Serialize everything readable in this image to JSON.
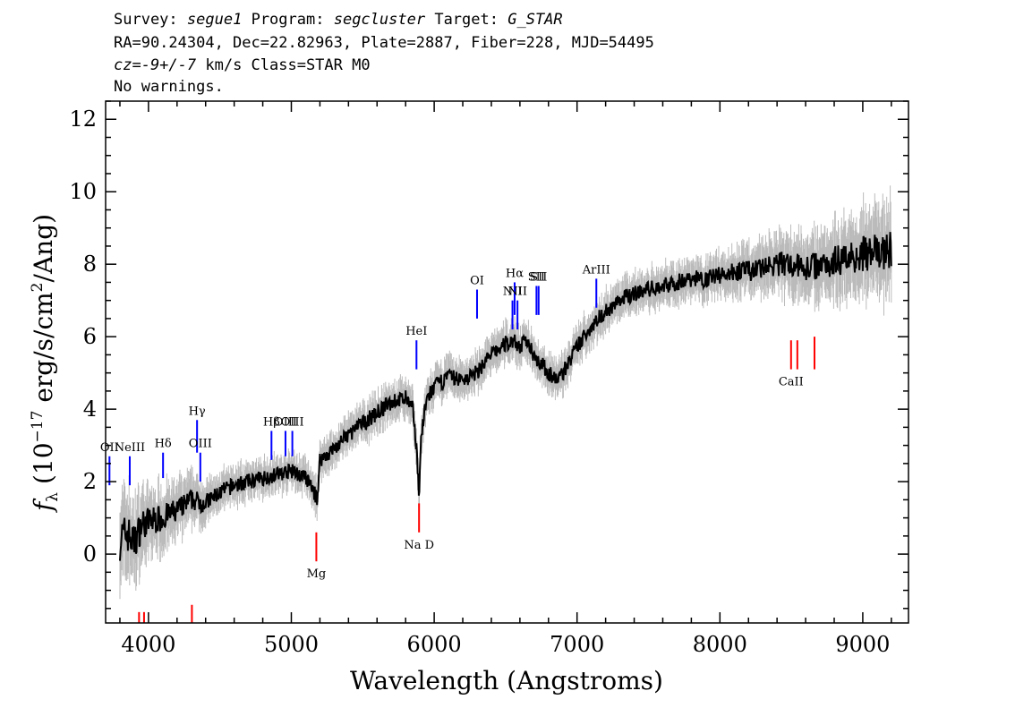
{
  "header": {
    "line1_survey_label": "Survey:",
    "line1_survey": "segue1",
    "line1_program_label": "Program:",
    "line1_program": "segcluster",
    "line1_target_label": "Target:",
    "line1_target": "G_STAR",
    "line2": "RA=90.24304, Dec=22.82963, Plate=2887, Fiber=228, MJD=54495",
    "line3_cz": "cz=-9+/-7",
    "line3_rest": " km/s Class=STAR M0",
    "line4": "No warnings."
  },
  "chart_data": {
    "type": "line",
    "xlabel": "Wavelength (Angstroms)",
    "ylabel": "f_λ (10^-17 erg/s/cm^2/Ang)",
    "xlim": [
      3700,
      9320
    ],
    "ylim": [
      -1.9,
      12.5
    ],
    "x_ticks": [
      4000,
      5000,
      6000,
      7000,
      8000,
      9000
    ],
    "y_ticks": [
      0,
      2,
      4,
      6,
      8,
      10,
      12
    ],
    "grid": false,
    "series": [
      {
        "role": "flux",
        "color": "#000000",
        "x": [
          3800,
          3850,
          3900,
          3950,
          4000,
          4100,
          4200,
          4300,
          4400,
          4500,
          4600,
          4700,
          4800,
          4900,
          5000,
          5100,
          5150,
          5180,
          5200,
          5300,
          5400,
          5500,
          5600,
          5700,
          5800,
          5850,
          5880,
          5893,
          5910,
          5950,
          6000,
          6100,
          6200,
          6300,
          6350,
          6400,
          6500,
          6563,
          6600,
          6650,
          6700,
          6800,
          6850,
          6900,
          7000,
          7100,
          7200,
          7300,
          7400,
          7500,
          7600,
          7700,
          7800,
          7900,
          8000,
          8100,
          8200,
          8300,
          8400,
          8500,
          8600,
          8700,
          8800,
          8900,
          9000,
          9100,
          9200
        ],
        "y": [
          0.4,
          0.6,
          0.3,
          0.8,
          0.9,
          1.0,
          1.2,
          1.5,
          1.4,
          1.7,
          1.9,
          2.0,
          2.1,
          2.2,
          2.3,
          2.1,
          1.8,
          1.5,
          2.6,
          2.9,
          3.3,
          3.6,
          3.9,
          4.2,
          4.3,
          4.0,
          2.8,
          1.6,
          3.3,
          4.3,
          4.6,
          4.9,
          4.8,
          5.0,
          5.3,
          5.5,
          5.8,
          5.9,
          5.7,
          5.9,
          5.5,
          5.0,
          4.8,
          5.0,
          5.7,
          6.3,
          6.7,
          7.0,
          7.2,
          7.3,
          7.4,
          7.5,
          7.6,
          7.6,
          7.7,
          7.8,
          7.8,
          7.9,
          8.0,
          8.0,
          7.9,
          8.0,
          8.1,
          8.2,
          8.3,
          8.3,
          8.4
        ]
      },
      {
        "role": "flux_error",
        "color": "#bbbbbb",
        "x": [
          3800,
          4000,
          4500,
          5000,
          5500,
          6000,
          6500,
          7000,
          7500,
          8000,
          8500,
          9000,
          9200
        ],
        "y_halfwidth": [
          1.3,
          0.9,
          0.5,
          0.45,
          0.5,
          0.5,
          0.5,
          0.5,
          0.5,
          0.55,
          0.8,
          1.1,
          1.2
        ]
      }
    ],
    "emission_lines": [
      {
        "label": "OII",
        "x": 3727,
        "y_bottom": 1.9,
        "y_top": 2.7
      },
      {
        "label": "NeIII",
        "x": 3869,
        "y_bottom": 1.9,
        "y_top": 2.7
      },
      {
        "label": "Hδ",
        "x": 4102,
        "y_bottom": 2.1,
        "y_top": 2.8
      },
      {
        "label": "Hγ",
        "x": 4340,
        "y_bottom": 2.8,
        "y_top": 3.7
      },
      {
        "label": "OIII",
        "x": 4363,
        "y_bottom": 2.0,
        "y_top": 2.8
      },
      {
        "label": "Hβ",
        "x": 4861,
        "y_bottom": 2.6,
        "y_top": 3.4
      },
      {
        "label": "OIII",
        "x": 4959,
        "y_bottom": 2.7,
        "y_top": 3.4
      },
      {
        "label": "OIII",
        "x": 5007,
        "y_bottom": 2.7,
        "y_top": 3.4
      },
      {
        "label": "HeI",
        "x": 5876,
        "y_bottom": 5.1,
        "y_top": 5.9
      },
      {
        "label": "OI",
        "x": 6300,
        "y_bottom": 6.5,
        "y_top": 7.3
      },
      {
        "label": "NII",
        "x": 6548,
        "y_bottom": 6.2,
        "y_top": 7.0
      },
      {
        "label": "Hα",
        "x": 6563,
        "y_bottom": 6.6,
        "y_top": 7.5
      },
      {
        "label": "NII",
        "x": 6583,
        "y_bottom": 6.2,
        "y_top": 7.0
      },
      {
        "label": "SII",
        "x": 6716,
        "y_bottom": 6.6,
        "y_top": 7.4
      },
      {
        "label": "SII",
        "x": 6731,
        "y_bottom": 6.6,
        "y_top": 7.4
      },
      {
        "label": "ArIII",
        "x": 7135,
        "y_bottom": 6.8,
        "y_top": 7.6
      }
    ],
    "absorption_lines": [
      {
        "label": "",
        "x": 3934,
        "y_top": -1.6,
        "y_bottom": -2.0
      },
      {
        "label": "",
        "x": 3969,
        "y_top": -1.6,
        "y_bottom": -2.0
      },
      {
        "label": "",
        "x": 4304,
        "y_top": -1.4,
        "y_bottom": -2.0
      },
      {
        "label": "Mg",
        "x": 5175,
        "y_top": 0.6,
        "y_bottom": -0.2
      },
      {
        "label": "Na D",
        "x": 5894,
        "y_top": 1.4,
        "y_bottom": 0.6
      },
      {
        "label": "CaII",
        "x": 8498,
        "y_top": 5.9,
        "y_bottom": 5.1
      },
      {
        "label": "CaII",
        "x": 8542,
        "y_top": 5.9,
        "y_bottom": 5.1
      },
      {
        "label": "",
        "x": 8662,
        "y_top": 6.0,
        "y_bottom": 5.1
      }
    ],
    "colors": {
      "flux": "#000000",
      "error": "#bbbbbb",
      "emission": "#0000ff",
      "emission_alt": "#000080",
      "absorption": "#ff0000",
      "axes": "#000000"
    }
  }
}
